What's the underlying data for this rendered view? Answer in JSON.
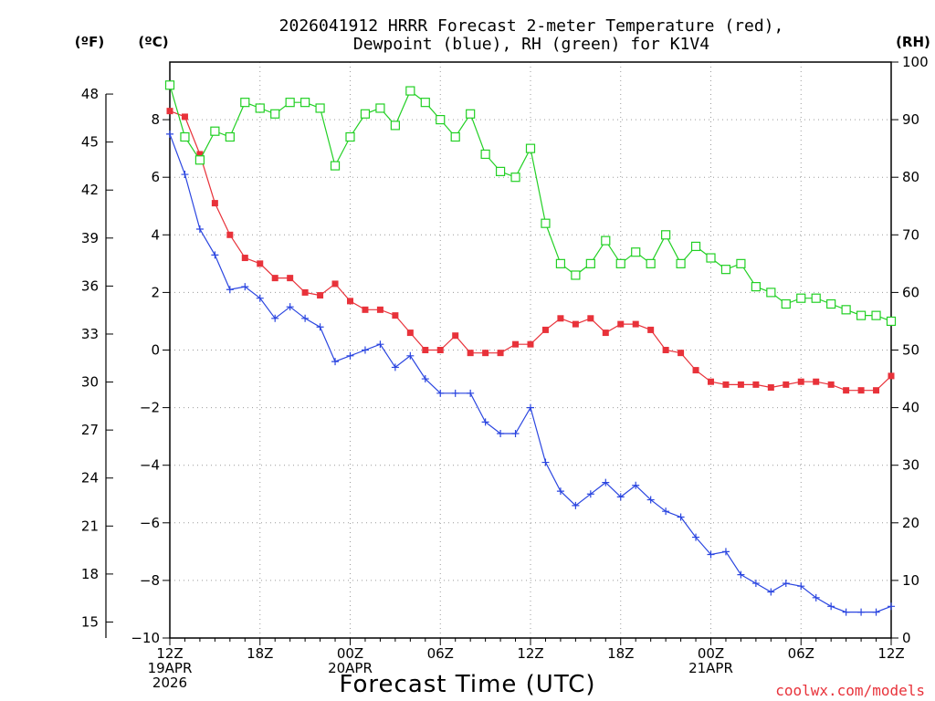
{
  "chart_data": {
    "type": "line",
    "title": [
      "2026041912 HRRR Forecast 2-meter Temperature (red),",
      "Dewpoint (blue), RH (green) for K1V4"
    ],
    "xlabel": "Forecast Time (UTC)",
    "credit": "coolwx.com/models",
    "units": {
      "fahrenheit": "(ºF)",
      "celsius": "(ºC)",
      "rh": "(RH)"
    },
    "x": [
      0,
      1,
      2,
      3,
      4,
      5,
      6,
      7,
      8,
      9,
      10,
      11,
      12,
      13,
      14,
      15,
      16,
      17,
      18,
      19,
      20,
      21,
      22,
      23,
      24,
      25,
      26,
      27,
      28,
      29,
      30,
      31,
      32,
      33,
      34,
      35,
      36,
      37,
      38,
      39,
      40,
      41,
      42,
      43,
      44,
      45,
      46,
      47,
      48
    ],
    "xlim": [
      0,
      48
    ],
    "xticks": [
      {
        "hour": 0,
        "lines": [
          "12Z",
          "19APR",
          "2026"
        ]
      },
      {
        "hour": 6,
        "lines": [
          "18Z"
        ]
      },
      {
        "hour": 12,
        "lines": [
          "00Z",
          "20APR"
        ]
      },
      {
        "hour": 18,
        "lines": [
          "06Z"
        ]
      },
      {
        "hour": 24,
        "lines": [
          "12Z"
        ]
      },
      {
        "hour": 30,
        "lines": [
          "18Z"
        ]
      },
      {
        "hour": 36,
        "lines": [
          "00Z",
          "21APR"
        ]
      },
      {
        "hour": 42,
        "lines": [
          "06Z"
        ]
      },
      {
        "hour": 48,
        "lines": [
          "12Z"
        ]
      }
    ],
    "ylim_celsius": [
      -10,
      10
    ],
    "yticks_celsius": [
      "-10",
      "-8",
      "-6",
      "-4",
      "-2",
      "0",
      "2",
      "4",
      "6",
      "8"
    ],
    "yticks_fahrenheit": [
      "15",
      "18",
      "21",
      "24",
      "27",
      "30",
      "33",
      "36",
      "39",
      "42",
      "45",
      "48"
    ],
    "ylim_rh": [
      0,
      100
    ],
    "yticks_rh": [
      "0",
      "10",
      "20",
      "30",
      "40",
      "50",
      "60",
      "70",
      "80",
      "90",
      "100"
    ],
    "series": [
      {
        "name": "Temperature",
        "axis": "celsius",
        "color": "#e8323a",
        "marker": "filled-square",
        "values": [
          8.3,
          8.1,
          6.8,
          5.1,
          4.0,
          3.2,
          3.0,
          2.5,
          2.5,
          2.0,
          1.9,
          2.3,
          1.7,
          1.4,
          1.4,
          1.2,
          0.6,
          0.0,
          0.0,
          0.5,
          -0.1,
          -0.1,
          -0.1,
          0.2,
          0.2,
          0.7,
          1.1,
          0.9,
          1.1,
          0.6,
          0.9,
          0.9,
          0.7,
          0.0,
          -0.1,
          -0.7,
          -1.1,
          -1.2,
          -1.2,
          -1.2,
          -1.3,
          -1.2,
          -1.1,
          -1.1,
          -1.2,
          -1.4,
          -1.4,
          -1.4,
          -0.9
        ]
      },
      {
        "name": "Dewpoint",
        "axis": "celsius",
        "color": "#2a45e0",
        "marker": "plus",
        "values": [
          7.5,
          6.1,
          4.2,
          3.3,
          2.1,
          2.2,
          1.8,
          1.1,
          1.5,
          1.1,
          0.8,
          -0.4,
          -0.2,
          0.0,
          0.2,
          -0.6,
          -0.2,
          -1.0,
          -1.5,
          -1.5,
          -1.5,
          -2.5,
          -2.9,
          -2.9,
          -2.0,
          -3.9,
          -4.9,
          -5.4,
          -5.0,
          -4.6,
          -5.1,
          -4.7,
          -5.2,
          -5.6,
          -5.8,
          -6.5,
          -7.1,
          -7.0,
          -7.8,
          -8.1,
          -8.4,
          -8.1,
          -8.2,
          -8.6,
          -8.9,
          -9.1,
          -9.1,
          -9.1,
          -8.9
        ]
      },
      {
        "name": "RH",
        "axis": "rh",
        "color": "#22d024",
        "marker": "open-square",
        "values": [
          96,
          87,
          83,
          88,
          87,
          93,
          92,
          91,
          93,
          93,
          92,
          82,
          87,
          91,
          92,
          89,
          95,
          93,
          90,
          87,
          91,
          84,
          81,
          80,
          85,
          72,
          65,
          63,
          65,
          69,
          65,
          67,
          65,
          70,
          65,
          68,
          66,
          64,
          65,
          61,
          60,
          58,
          59,
          59,
          58,
          57,
          56,
          56,
          55
        ]
      }
    ]
  }
}
